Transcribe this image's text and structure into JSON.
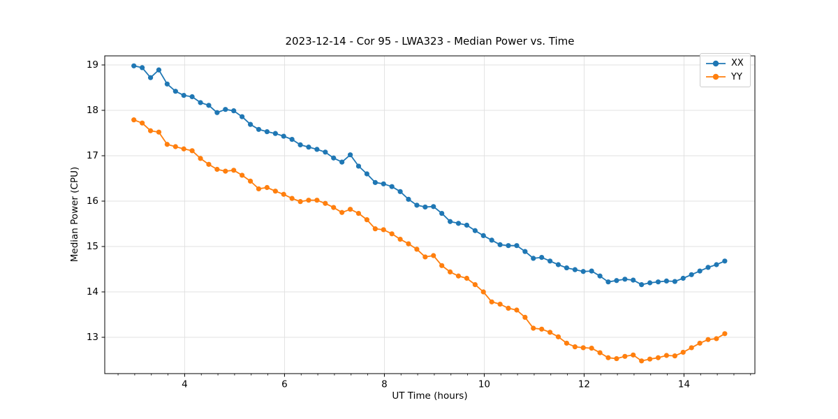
{
  "chart_data": {
    "type": "line",
    "title": "2023-12-14 - Cor 95 - LWA323 - Median Power vs. Time",
    "xlabel": "UT Time (hours)",
    "ylabel": "Median Power (CPU)",
    "xlim": [
      2.4,
      15.42
    ],
    "ylim": [
      12.2,
      19.2
    ],
    "xticks": [
      4,
      6,
      8,
      10,
      12,
      14
    ],
    "yticks": [
      13,
      14,
      15,
      16,
      17,
      18,
      19
    ],
    "minor_xtick_step": 0.33333,
    "grid": true,
    "legend_position": "upper-right",
    "style": {
      "grid_color": "#e0e0e0",
      "spine_color": "#000000",
      "text_color": "#000000",
      "background": "#ffffff"
    },
    "x": [
      2.983,
      3.15,
      3.317,
      3.483,
      3.65,
      3.817,
      3.983,
      4.15,
      4.317,
      4.483,
      4.65,
      4.817,
      4.983,
      5.15,
      5.317,
      5.483,
      5.65,
      5.817,
      5.983,
      6.15,
      6.317,
      6.483,
      6.65,
      6.817,
      6.983,
      7.15,
      7.317,
      7.483,
      7.65,
      7.817,
      7.983,
      8.15,
      8.317,
      8.483,
      8.65,
      8.817,
      8.983,
      9.15,
      9.317,
      9.483,
      9.65,
      9.817,
      9.983,
      10.15,
      10.317,
      10.483,
      10.65,
      10.817,
      10.983,
      11.15,
      11.317,
      11.483,
      11.65,
      11.817,
      11.983,
      12.15,
      12.317,
      12.483,
      12.65,
      12.817,
      12.983,
      13.15,
      13.317,
      13.483,
      13.65,
      13.817,
      13.983,
      14.15,
      14.317,
      14.483,
      14.65,
      14.817
    ],
    "series": [
      {
        "name": "XX",
        "color": "#1f77b4",
        "values": [
          18.98,
          18.94,
          18.72,
          18.89,
          18.58,
          18.42,
          18.33,
          18.3,
          18.17,
          18.11,
          17.95,
          18.02,
          17.99,
          17.86,
          17.69,
          17.58,
          17.53,
          17.49,
          17.43,
          17.36,
          17.24,
          17.19,
          17.14,
          17.08,
          16.95,
          16.86,
          17.02,
          16.77,
          16.6,
          16.41,
          16.38,
          16.32,
          16.21,
          16.04,
          15.91,
          15.87,
          15.88,
          15.73,
          15.55,
          15.51,
          15.47,
          15.35,
          15.24,
          15.14,
          15.04,
          15.02,
          15.02,
          14.89,
          14.74,
          14.76,
          14.68,
          14.6,
          14.53,
          14.49,
          14.45,
          14.46,
          14.35,
          14.22,
          14.25,
          14.28,
          14.26,
          14.16,
          14.2,
          14.22,
          14.24,
          14.23,
          14.3,
          14.38,
          14.46,
          14.54,
          14.6,
          14.68
        ]
      },
      {
        "name": "YY",
        "color": "#ff7f0e",
        "values": [
          17.79,
          17.72,
          17.55,
          17.52,
          17.25,
          17.2,
          17.15,
          17.11,
          16.94,
          16.81,
          16.7,
          16.66,
          16.68,
          16.57,
          16.44,
          16.27,
          16.3,
          16.22,
          16.15,
          16.06,
          15.99,
          16.02,
          16.02,
          15.95,
          15.86,
          15.75,
          15.82,
          15.73,
          15.59,
          15.39,
          15.37,
          15.28,
          15.16,
          15.06,
          14.94,
          14.77,
          14.8,
          14.58,
          14.44,
          14.35,
          14.3,
          14.16,
          14.0,
          13.78,
          13.73,
          13.64,
          13.6,
          13.44,
          13.2,
          13.18,
          13.11,
          13.01,
          12.87,
          12.79,
          12.77,
          12.76,
          12.66,
          12.55,
          12.53,
          12.58,
          12.61,
          12.48,
          12.52,
          12.55,
          12.6,
          12.59,
          12.67,
          12.77,
          12.87,
          12.95,
          12.97,
          13.08
        ]
      }
    ]
  }
}
